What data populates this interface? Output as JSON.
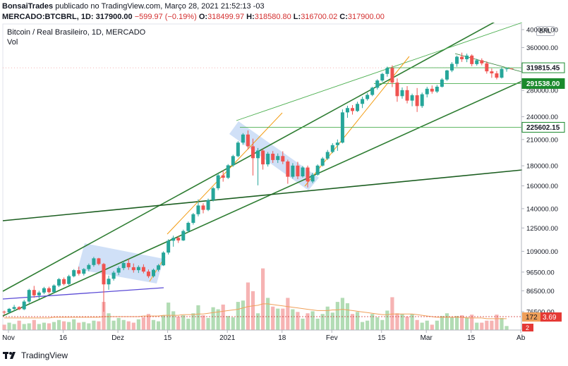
{
  "header": {
    "publisher": "BonsaiTrades",
    "published_text": "publicado no TradingView.com, Março 28, 2021 21:52:13 -03",
    "symbol": "MERCADO:BTCBRL, 1D",
    "last": "317900.00",
    "change": "−599.97 (−0.19%)",
    "o_label": "O:",
    "o": "318499.97",
    "h_label": "H:",
    "h": "318580.80",
    "l_label": "L:",
    "l": "316700.02",
    "c_label": "C:",
    "c": "317900.00"
  },
  "legend": {
    "title": "Bitcoin / Real Brasileiro, 1D, MERCADO",
    "vol": "Vol"
  },
  "currency_button": "BRL",
  "footer": {
    "brand": "TradingView"
  },
  "colors": {
    "up": "#26a69a",
    "down": "#ef5350",
    "channel": "#2e7d32",
    "orange": "#f39c12",
    "blue": "#5b4bd6",
    "box": "#a9c6f0",
    "green_label": "#1b8a2d"
  },
  "chart_data": {
    "type": "candlestick",
    "title": "Bitcoin / Real Brasileiro, 1D, MERCADO",
    "x_ticks": [
      "Nov",
      "16",
      "Dez",
      "15",
      "2021",
      "18",
      "Fev",
      "15",
      "Mar",
      "15",
      "Ab"
    ],
    "y_ticks": [
      "400000.00",
      "360000.00",
      "320000.00",
      "280000.00",
      "240000.00",
      "210000.00",
      "180000.00",
      "160000.00",
      "140000.00",
      "125000.00",
      "109000.00",
      "96500.00",
      "86500.00",
      "76500.00"
    ],
    "y_scale": "log",
    "price_labels": [
      {
        "text": "319815.45",
        "value": 319815.45,
        "style": "outline"
      },
      {
        "text": "291538.00",
        "value": 291538.0,
        "style": "filled"
      },
      {
        "text": "225602.15",
        "value": 225602.15,
        "style": "outline"
      }
    ],
    "volume_labels": [
      "172",
      "3.69",
      "2"
    ],
    "ohlc": [
      [
        76500,
        77000,
        75200,
        76200
      ],
      [
        76200,
        78200,
        75800,
        77800
      ],
      [
        77800,
        79600,
        76800,
        78600
      ],
      [
        78600,
        79000,
        77200,
        77600
      ],
      [
        77600,
        82000,
        77200,
        81200
      ],
      [
        81200,
        87500,
        80500,
        86900
      ],
      [
        86900,
        89000,
        83000,
        84200
      ],
      [
        84200,
        86500,
        82500,
        85600
      ],
      [
        85600,
        88500,
        84800,
        87800
      ],
      [
        87800,
        88600,
        85000,
        85800
      ],
      [
        85800,
        89800,
        85400,
        89200
      ],
      [
        89200,
        93200,
        88400,
        92600
      ],
      [
        92600,
        93500,
        89300,
        90000
      ],
      [
        90000,
        95000,
        89400,
        94200
      ],
      [
        94200,
        98200,
        93600,
        97600
      ],
      [
        97600,
        99600,
        94600,
        95600
      ],
      [
        95600,
        98800,
        94600,
        98200
      ],
      [
        98200,
        101500,
        97000,
        100600
      ],
      [
        100600,
        105500,
        99600,
        104600
      ],
      [
        104600,
        104900,
        100400,
        101200
      ],
      [
        101200,
        101800,
        76500,
        89800
      ],
      [
        89800,
        94500,
        87000,
        92800
      ],
      [
        92800,
        97200,
        91800,
        96200
      ],
      [
        96200,
        99800,
        94800,
        98800
      ],
      [
        98800,
        103000,
        97600,
        101800
      ],
      [
        101800,
        104200,
        97800,
        99300
      ],
      [
        99300,
        101500,
        96200,
        97600
      ],
      [
        97600,
        100400,
        96000,
        99400
      ],
      [
        99400,
        101000,
        95800,
        96800
      ],
      [
        96800,
        98000,
        93200,
        94200
      ],
      [
        94200,
        98500,
        93500,
        97800
      ],
      [
        97800,
        101200,
        96800,
        100400
      ],
      [
        100400,
        109000,
        100000,
        108200
      ],
      [
        108200,
        117000,
        107000,
        116000
      ],
      [
        116000,
        119500,
        112000,
        118000
      ],
      [
        118000,
        119200,
        114500,
        116200
      ],
      [
        116200,
        123800,
        115800,
        122800
      ],
      [
        122800,
        129800,
        121800,
        128800
      ],
      [
        128800,
        136500,
        127500,
        135500
      ],
      [
        135500,
        147800,
        133800,
        142600
      ],
      [
        142600,
        144500,
        136200,
        139000
      ],
      [
        139000,
        148500,
        138000,
        147200
      ],
      [
        147200,
        159000,
        146000,
        157800
      ],
      [
        157800,
        172000,
        156000,
        170200
      ],
      [
        170200,
        175200,
        164000,
        167800
      ],
      [
        167800,
        181800,
        166500,
        180500
      ],
      [
        180500,
        192000,
        179000,
        190500
      ],
      [
        190500,
        208000,
        189200,
        206200
      ],
      [
        206200,
        218000,
        203500,
        216200
      ],
      [
        216200,
        221500,
        198000,
        201800
      ],
      [
        201800,
        211000,
        170000,
        188200
      ],
      [
        188200,
        199800,
        160500,
        196800
      ],
      [
        196800,
        198500,
        176000,
        181500
      ],
      [
        181500,
        195200,
        179200,
        193200
      ],
      [
        193200,
        196200,
        183000,
        186200
      ],
      [
        186200,
        193500,
        183000,
        190600
      ],
      [
        190600,
        196000,
        181800,
        184600
      ],
      [
        184600,
        186500,
        162000,
        168800
      ],
      [
        168800,
        182800,
        167000,
        180200
      ],
      [
        180200,
        184200,
        166500,
        169200
      ],
      [
        169200,
        179800,
        168000,
        178200
      ],
      [
        178200,
        180200,
        158500,
        164200
      ],
      [
        164200,
        172800,
        162500,
        170800
      ],
      [
        170800,
        181500,
        169800,
        180200
      ],
      [
        180200,
        189500,
        179200,
        187800
      ],
      [
        187800,
        197500,
        186200,
        195200
      ],
      [
        195200,
        205500,
        193800,
        203200
      ],
      [
        203200,
        210000,
        196500,
        206200
      ],
      [
        206200,
        250500,
        205200,
        246200
      ],
      [
        246200,
        256000,
        238500,
        252500
      ],
      [
        252500,
        257000,
        243000,
        248200
      ],
      [
        248200,
        262000,
        246800,
        258800
      ],
      [
        258800,
        270000,
        252500,
        266200
      ],
      [
        266200,
        276000,
        263800,
        272800
      ],
      [
        272800,
        286000,
        270800,
        284500
      ],
      [
        284500,
        299000,
        281500,
        296800
      ],
      [
        296800,
        310500,
        294200,
        308500
      ],
      [
        308500,
        322000,
        303500,
        319500
      ],
      [
        319500,
        324500,
        285500,
        293200
      ],
      [
        293200,
        300500,
        262000,
        270800
      ],
      [
        270800,
        285000,
        266800,
        280500
      ],
      [
        280500,
        287200,
        259500,
        263800
      ],
      [
        263800,
        274800,
        255200,
        272200
      ],
      [
        272200,
        284000,
        246800,
        255500
      ],
      [
        255500,
        276500,
        252800,
        273800
      ],
      [
        273800,
        286000,
        268800,
        282800
      ],
      [
        282800,
        288200,
        274800,
        278200
      ],
      [
        278200,
        289200,
        275800,
        286200
      ],
      [
        286200,
        301000,
        284800,
        298500
      ],
      [
        298500,
        316000,
        296200,
        314800
      ],
      [
        314800,
        330500,
        311800,
        327200
      ],
      [
        327200,
        343500,
        321800,
        341200
      ],
      [
        341200,
        349500,
        331000,
        336200
      ],
      [
        336200,
        347500,
        330500,
        343500
      ],
      [
        343500,
        346000,
        322800,
        326800
      ],
      [
        326800,
        337000,
        323800,
        334200
      ],
      [
        334200,
        338000,
        324500,
        328200
      ],
      [
        328200,
        332000,
        309000,
        313200
      ],
      [
        313200,
        318500,
        301500,
        309500
      ],
      [
        309500,
        313800,
        298800,
        301800
      ],
      [
        301800,
        321000,
        300200,
        317500
      ],
      [
        317500,
        320800,
        312500,
        318500
      ],
      [
        318500,
        318580,
        316700,
        317900
      ]
    ],
    "volumes": [
      8,
      11,
      9,
      14,
      9,
      10,
      15,
      9,
      11,
      10,
      12,
      15,
      13,
      12,
      16,
      11,
      12,
      10,
      14,
      13,
      42,
      25,
      14,
      18,
      15,
      13,
      11,
      16,
      19,
      24,
      15,
      13,
      22,
      41,
      28,
      20,
      22,
      17,
      25,
      37,
      22,
      18,
      34,
      31,
      38,
      21,
      19,
      42,
      44,
      71,
      58,
      25,
      92,
      48,
      35,
      32,
      32,
      48,
      31,
      27,
      17,
      25,
      28,
      17,
      24,
      35,
      26,
      42,
      48,
      40,
      24,
      27,
      12,
      14,
      24,
      19,
      15,
      29,
      49,
      25,
      24,
      20,
      24,
      15,
      11,
      14,
      8,
      14,
      21,
      25,
      19,
      21,
      22,
      19,
      23,
      11,
      11,
      14,
      14,
      23,
      18,
      6
    ],
    "vol_ma": [
      18,
      18,
      18,
      18,
      18,
      18,
      18,
      18,
      18,
      18,
      19,
      19,
      19,
      19,
      19,
      19,
      19,
      19,
      19,
      19,
      20,
      20,
      20,
      20,
      20,
      20,
      20,
      20,
      21,
      21,
      21,
      21,
      22,
      22,
      22,
      22,
      23,
      23,
      23,
      24,
      24,
      25,
      26,
      27,
      28,
      29,
      30,
      31,
      33,
      35,
      36,
      37,
      39,
      39,
      38,
      37,
      36,
      35,
      34,
      33,
      32,
      31,
      30,
      29,
      29,
      29,
      30,
      30,
      31,
      30,
      29,
      28,
      27,
      26,
      25,
      24,
      23,
      23,
      24,
      24,
      24,
      24,
      24,
      23,
      22,
      21,
      20,
      19,
      19,
      19,
      19,
      19,
      19,
      18,
      18,
      18,
      18,
      17,
      17,
      17,
      17,
      17
    ]
  }
}
